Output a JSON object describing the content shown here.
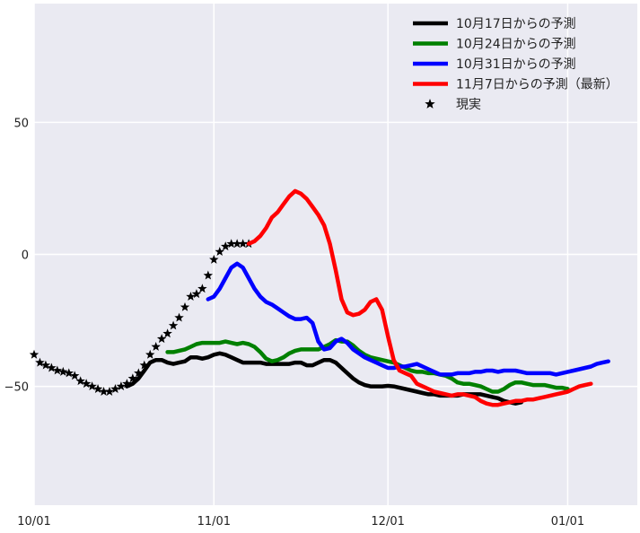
{
  "chart_data": {
    "type": "line",
    "xlim": [
      0,
      104
    ],
    "ylim": [
      -95,
      95
    ],
    "x_ticks": [
      {
        "x": 0,
        "label": "10/01"
      },
      {
        "x": 31,
        "label": "11/01"
      },
      {
        "x": 61,
        "label": "12/01"
      },
      {
        "x": 92,
        "label": "01/01"
      }
    ],
    "y_ticks": [
      {
        "y": 50,
        "label": "50"
      },
      {
        "y": 0,
        "label": "0"
      },
      {
        "y": -50,
        "label": "−50"
      }
    ],
    "grid": true,
    "legend_position": "top-right",
    "series": [
      {
        "name": "10月17日からの予測",
        "color": "#000000",
        "x": [
          16,
          17,
          18,
          19,
          20,
          21,
          22,
          23,
          24,
          25,
          26,
          27,
          28,
          29,
          30,
          31,
          32,
          33,
          34,
          35,
          36,
          37,
          38,
          39,
          40,
          41,
          42,
          43,
          44,
          45,
          46,
          47,
          48,
          49,
          50,
          51,
          52,
          53,
          54,
          55,
          56,
          57,
          58,
          59,
          60,
          61,
          62,
          63,
          64,
          65,
          66,
          67,
          68,
          69,
          70,
          71,
          72,
          73,
          74,
          75,
          76,
          77,
          78,
          79,
          80,
          81,
          82,
          83,
          84
        ],
        "y": [
          -50,
          -49,
          -47,
          -44,
          -41,
          -40,
          -40,
          -41,
          -41.5,
          -41,
          -40.5,
          -39,
          -39,
          -39.5,
          -39,
          -38,
          -37.5,
          -38,
          -39,
          -40,
          -41,
          -41,
          -41,
          -41,
          -41.5,
          -41.5,
          -41.5,
          -41.5,
          -41.5,
          -41,
          -41,
          -42,
          -42,
          -41,
          -40,
          -40,
          -41,
          -43,
          -45,
          -47,
          -48.5,
          -49.5,
          -50,
          -50,
          -50,
          -49.8,
          -50,
          -50.5,
          -51,
          -51.5,
          -52,
          -52.5,
          -53,
          -53,
          -53.5,
          -53.5,
          -53.5,
          -53.5,
          -53,
          -53,
          -53,
          -53,
          -53.5,
          -54,
          -54.5,
          -55.5,
          -56,
          -56.5,
          -56
        ]
      },
      {
        "name": "10月24日からの予測",
        "color": "#008000",
        "x": [
          23,
          24,
          25,
          26,
          27,
          28,
          29,
          30,
          31,
          32,
          33,
          34,
          35,
          36,
          37,
          38,
          39,
          40,
          41,
          42,
          43,
          44,
          45,
          46,
          47,
          48,
          49,
          50,
          51,
          52,
          53,
          54,
          55,
          56,
          57,
          58,
          59,
          60,
          61,
          62,
          63,
          64,
          65,
          66,
          67,
          68,
          69,
          70,
          71,
          72,
          73,
          74,
          75,
          76,
          77,
          78,
          79,
          80,
          81,
          82,
          83,
          84,
          85,
          86,
          87,
          88,
          89,
          90,
          91,
          92
        ],
        "y": [
          -37,
          -37,
          -36.5,
          -36,
          -35,
          -34,
          -33.5,
          -33.5,
          -33.5,
          -33.5,
          -33,
          -33.5,
          -34,
          -33.5,
          -34,
          -35,
          -37,
          -39.5,
          -40.5,
          -40,
          -39,
          -37.5,
          -36.5,
          -36,
          -36,
          -36,
          -36,
          -35,
          -34,
          -32.5,
          -33,
          -33,
          -34.5,
          -36.5,
          -38,
          -39,
          -39.5,
          -40,
          -40.5,
          -41,
          -42,
          -43,
          -44,
          -44.5,
          -44.5,
          -45,
          -45,
          -45.5,
          -46,
          -47,
          -48.5,
          -49,
          -49,
          -49.5,
          -50,
          -51,
          -52,
          -52,
          -51,
          -49.5,
          -48.5,
          -48.5,
          -49,
          -49.5,
          -49.5,
          -49.5,
          -50,
          -50.5,
          -50.5,
          -51
        ]
      },
      {
        "name": "10月31日からの予測",
        "color": "#0000ff",
        "x": [
          30,
          31,
          32,
          33,
          34,
          35,
          36,
          37,
          38,
          39,
          40,
          41,
          42,
          43,
          44,
          45,
          46,
          47,
          48,
          49,
          50,
          51,
          52,
          53,
          54,
          55,
          56,
          57,
          58,
          59,
          60,
          61,
          62,
          63,
          64,
          65,
          66,
          67,
          68,
          69,
          70,
          71,
          72,
          73,
          74,
          75,
          76,
          77,
          78,
          79,
          80,
          81,
          82,
          83,
          84,
          85,
          86,
          87,
          88,
          89,
          90,
          91,
          92,
          93,
          94,
          95,
          96,
          97,
          98,
          99
        ],
        "y": [
          -17,
          -16,
          -13,
          -9,
          -5,
          -3.5,
          -5,
          -9,
          -13,
          -16,
          -18,
          -19,
          -20.5,
          -22,
          -23.5,
          -24.5,
          -24.5,
          -24,
          -26,
          -33,
          -36,
          -35.5,
          -33,
          -32,
          -33.5,
          -36,
          -37.5,
          -39,
          -40,
          -41,
          -42,
          -43,
          -43,
          -42.5,
          -42.5,
          -42,
          -41.5,
          -42.5,
          -43.5,
          -44.5,
          -45.5,
          -45.5,
          -45.5,
          -45,
          -45,
          -45,
          -44.5,
          -44.5,
          -44,
          -44,
          -44.5,
          -44,
          -44,
          -44,
          -44.5,
          -45,
          -45,
          -45,
          -45,
          -45,
          -45.5,
          -45,
          -44.5,
          -44,
          -43.5,
          -43,
          -42.5,
          -41.5,
          -41,
          -40.5
        ]
      },
      {
        "name": "11月7日からの予測（最新）",
        "color": "#ff0000",
        "x": [
          37,
          38,
          39,
          40,
          41,
          42,
          43,
          44,
          45,
          46,
          47,
          48,
          49,
          50,
          51,
          52,
          53,
          54,
          55,
          56,
          57,
          58,
          59,
          60,
          61,
          62,
          63,
          64,
          65,
          66,
          67,
          68,
          69,
          70,
          71,
          72,
          73,
          74,
          75,
          76,
          77,
          78,
          79,
          80,
          81,
          82,
          83,
          84,
          85,
          86,
          87,
          88,
          89,
          90,
          91,
          92,
          93,
          94,
          95,
          96
        ],
        "y": [
          4,
          5,
          7,
          10,
          14,
          16,
          19,
          22,
          24,
          23,
          21,
          18,
          15,
          11,
          4,
          -6,
          -17,
          -22,
          -23,
          -22.5,
          -21,
          -18,
          -17,
          -21,
          -31,
          -40,
          -44,
          -45,
          -46,
          -49,
          -50,
          -51,
          -52,
          -52.5,
          -53,
          -53.5,
          -53,
          -53,
          -53.5,
          -54,
          -55.5,
          -56.5,
          -57,
          -57,
          -56.5,
          -56,
          -55.5,
          -55.5,
          -55,
          -55,
          -54.5,
          -54,
          -53.5,
          -53,
          -52.5,
          -52,
          -51,
          -50,
          -49.5,
          -49
        ]
      },
      {
        "name": "現実",
        "color": "#000000",
        "marker": "star",
        "x": [
          0,
          1,
          2,
          3,
          4,
          5,
          6,
          7,
          8,
          9,
          10,
          11,
          12,
          13,
          14,
          15,
          16,
          17,
          18,
          19,
          20,
          21,
          22,
          23,
          24,
          25,
          26,
          27,
          28,
          29,
          30,
          31,
          32,
          33,
          34,
          35,
          36,
          37
        ],
        "y": [
          -38,
          -41,
          -42,
          -43,
          -44,
          -44.5,
          -45,
          -46,
          -48,
          -49,
          -50,
          -51,
          -52,
          -52,
          -51,
          -50,
          -49,
          -47,
          -45,
          -42,
          -38,
          -35,
          -32,
          -30,
          -27,
          -24,
          -20,
          -16,
          -15,
          -13,
          -8,
          -2,
          1,
          3,
          4,
          4,
          4,
          4
        ]
      }
    ]
  }
}
